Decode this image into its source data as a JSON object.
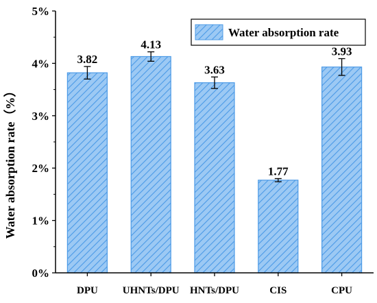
{
  "chart_data": {
    "type": "bar",
    "categories": [
      "DPU",
      "UHNTs/DPU",
      "HNTs/DPU",
      "CIS",
      "CPU"
    ],
    "series": [
      {
        "name": "Water absorption rate",
        "values": [
          3.82,
          4.13,
          3.63,
          1.77,
          3.93
        ],
        "errors": [
          0.12,
          0.09,
          0.11,
          0.03,
          0.16
        ],
        "labels": [
          "3.82",
          "4.13",
          "3.63",
          "1.77",
          "3.93"
        ]
      }
    ],
    "ylabel": "Water absorption rate（%）",
    "ylim": [
      0,
      5
    ],
    "yticks": [
      0,
      1,
      2,
      3,
      4,
      5
    ],
    "ytick_labels": [
      "0%",
      "1%",
      "2%",
      "3%",
      "4%",
      "5%"
    ],
    "legend_position": "top-right",
    "grid": false,
    "colors": {
      "bar_fill": "#9cc9f4",
      "bar_hatch": "#4b9ae6",
      "bar_edge": "#4b9ae6",
      "axis": "#000000"
    }
  }
}
